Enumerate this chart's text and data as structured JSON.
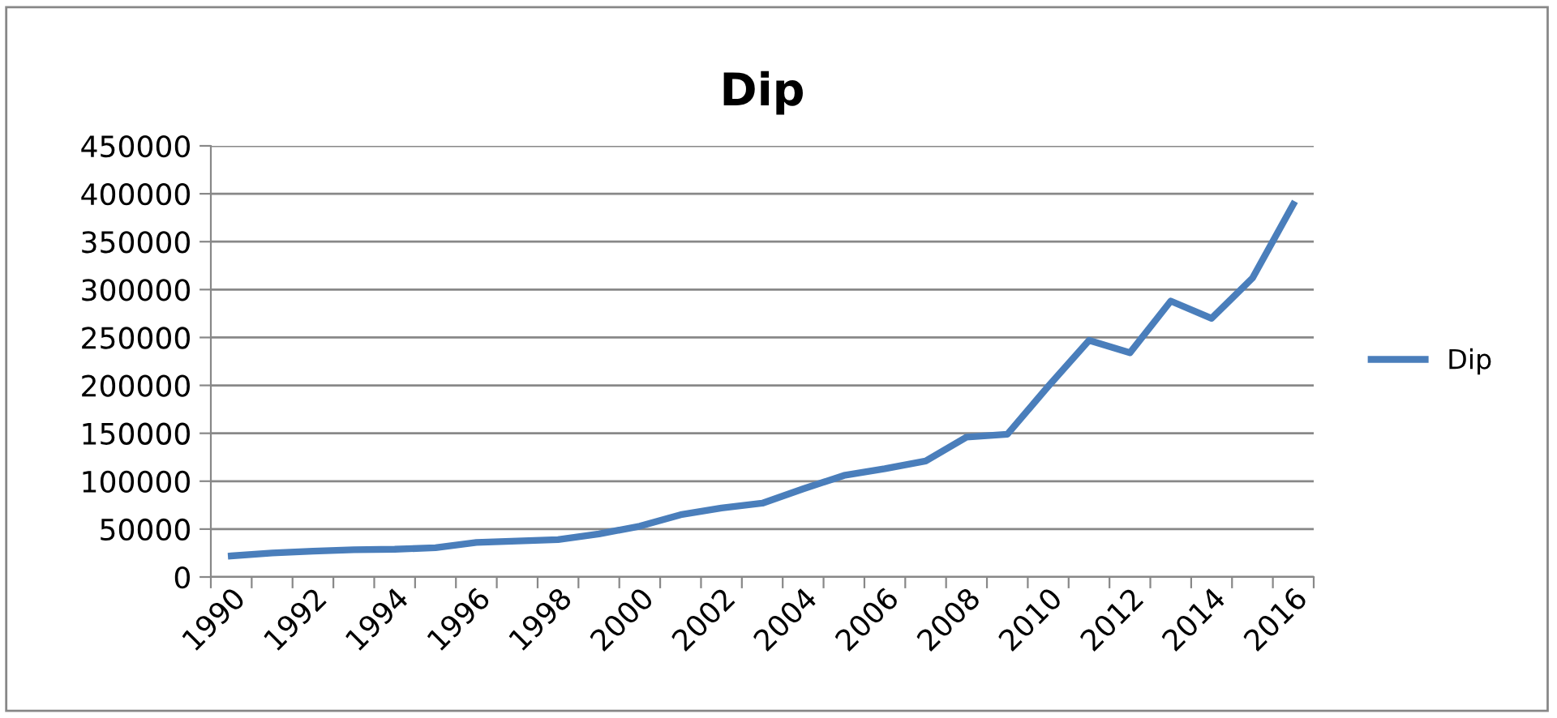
{
  "chart_data": {
    "type": "line",
    "title": "Dip",
    "categories": [
      "1990",
      null,
      "1992",
      null,
      "1994",
      null,
      "1996",
      null,
      "1998",
      null,
      "2000",
      null,
      "2002",
      null,
      "2004",
      null,
      "2006",
      null,
      "2008",
      null,
      "2010",
      null,
      "2012",
      null,
      "2014",
      null,
      "2016"
    ],
    "series": [
      {
        "name": "Dip",
        "color": "#4a7ebb",
        "values": [
          22000,
          25000,
          27000,
          28500,
          29000,
          30500,
          36000,
          37500,
          39000,
          45000,
          53000,
          65000,
          72000,
          77000,
          92000,
          106000,
          113000,
          121000,
          146000,
          149000,
          199000,
          247000,
          234000,
          288000,
          270000,
          312000,
          389000
        ]
      }
    ],
    "ylim": [
      0,
      450000
    ],
    "yticks": [
      0,
      50000,
      100000,
      150000,
      200000,
      250000,
      300000,
      350000,
      400000,
      450000
    ],
    "grid": "y",
    "legend": "right",
    "marker": "none",
    "line_style": "solid"
  }
}
